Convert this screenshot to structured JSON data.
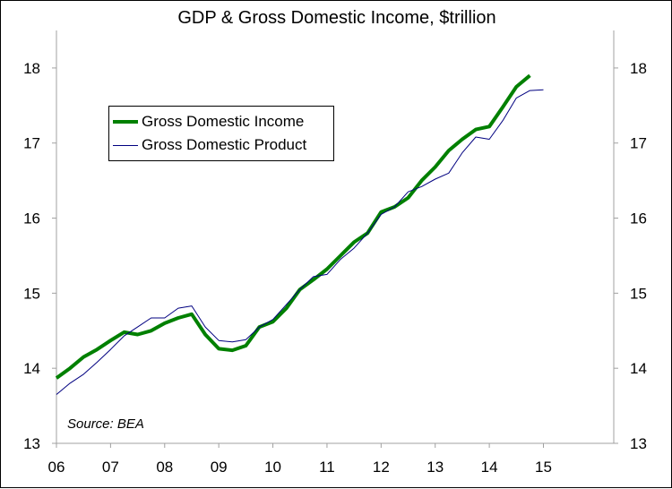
{
  "chart_data": {
    "type": "line",
    "title": "GDP & Gross Domestic Income, $trillion",
    "x_ticks": [
      "06",
      "07",
      "08",
      "09",
      "10",
      "11",
      "12",
      "13",
      "14",
      "15"
    ],
    "y_ticks": [
      "13",
      "14",
      "15",
      "16",
      "17",
      "18"
    ],
    "ylim": [
      13,
      18.5
    ],
    "x_start_year": 2006,
    "legend_placement": "upper-left",
    "grid": false,
    "series": [
      {
        "name": "Gross Domestic Income",
        "color": "#008000",
        "x": [
          2006.0,
          2006.25,
          2006.5,
          2006.75,
          2007.0,
          2007.25,
          2007.5,
          2007.75,
          2008.0,
          2008.25,
          2008.5,
          2008.75,
          2009.0,
          2009.25,
          2009.5,
          2009.75,
          2010.0,
          2010.25,
          2010.5,
          2010.75,
          2011.0,
          2011.25,
          2011.5,
          2011.75,
          2012.0,
          2012.25,
          2012.5,
          2012.75,
          2013.0,
          2013.25,
          2013.5,
          2013.75,
          2014.0,
          2014.25,
          2014.5,
          2014.75
        ],
        "values": [
          13.87,
          14.0,
          14.15,
          14.25,
          14.37,
          14.48,
          14.45,
          14.5,
          14.6,
          14.67,
          14.72,
          14.45,
          14.26,
          14.24,
          14.3,
          14.55,
          14.62,
          14.8,
          15.05,
          15.18,
          15.32,
          15.5,
          15.68,
          15.8,
          16.08,
          16.15,
          16.27,
          16.5,
          16.68,
          16.9,
          17.05,
          17.18,
          17.22,
          17.48,
          17.75,
          17.9
        ]
      },
      {
        "name": "Gross Domestic Product",
        "color": "#000080",
        "x": [
          2006.0,
          2006.25,
          2006.5,
          2006.75,
          2007.0,
          2007.25,
          2007.5,
          2007.75,
          2008.0,
          2008.25,
          2008.5,
          2008.75,
          2009.0,
          2009.25,
          2009.5,
          2009.75,
          2010.0,
          2010.25,
          2010.5,
          2010.75,
          2011.0,
          2011.25,
          2011.5,
          2011.75,
          2012.0,
          2012.25,
          2012.5,
          2012.75,
          2013.0,
          2013.25,
          2013.5,
          2013.75,
          2014.0,
          2014.25,
          2014.5,
          2014.75,
          2015.0
        ],
        "values": [
          13.65,
          13.8,
          13.92,
          14.08,
          14.25,
          14.43,
          14.55,
          14.67,
          14.67,
          14.8,
          14.83,
          14.55,
          14.37,
          14.35,
          14.38,
          14.55,
          14.65,
          14.85,
          15.05,
          15.22,
          15.25,
          15.45,
          15.6,
          15.8,
          16.05,
          16.15,
          16.35,
          16.42,
          16.52,
          16.6,
          16.87,
          17.08,
          17.05,
          17.3,
          17.6,
          17.7,
          17.71
        ]
      }
    ],
    "annotation": "Source: BEA"
  }
}
